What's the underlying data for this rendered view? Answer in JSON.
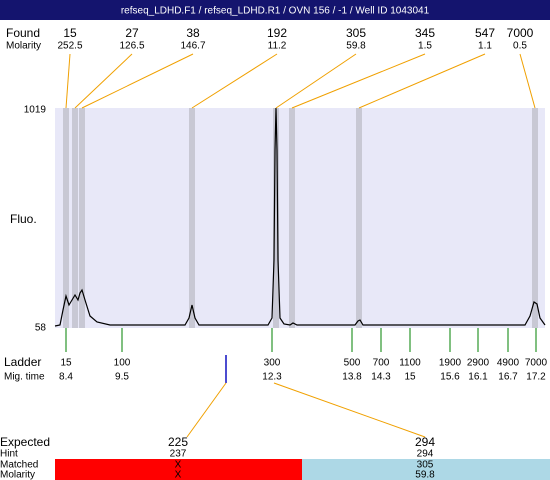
{
  "header": {
    "title": "refseq_LDHD.F1 / refseq_LDHD.R1 / OVN 156 / -1 / Well ID 1043041"
  },
  "found": {
    "label": "Found",
    "molarity_label": "Molarity",
    "sizes": [
      15,
      27,
      38,
      192,
      305,
      345,
      547,
      7000
    ],
    "molarities": [
      252.5,
      126.5,
      146.7,
      11.2,
      59.8,
      1.5,
      1.1,
      0.5
    ]
  },
  "plot": {
    "y_label": "Fluo.",
    "y_top": 1019,
    "y_bottom": 58
  },
  "ladder": {
    "label": "Ladder",
    "mig_time_label": "Mig. time",
    "sizes": [
      15,
      100,
      300,
      500,
      700,
      1100,
      1900,
      2900,
      4900,
      7000
    ],
    "mig_times": [
      8.4,
      9.5,
      12.3,
      13.8,
      14.3,
      15,
      15.6,
      16.1,
      16.7,
      17.2
    ]
  },
  "expected": {
    "label": "Expected",
    "hint_label": "Hint",
    "matched_label": "Matched",
    "molarity_label": "Molarity",
    "expected": [
      225,
      294
    ],
    "hint": [
      237,
      294
    ],
    "matched": [
      "X",
      305
    ],
    "molarity": [
      "X",
      59.8
    ]
  }
}
